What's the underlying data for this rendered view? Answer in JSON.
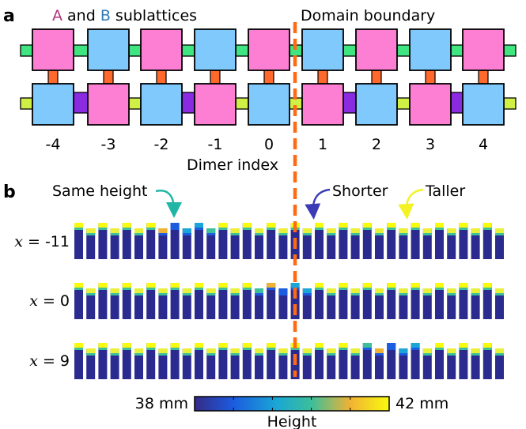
{
  "panel_a": {
    "label": "a",
    "title_letter_a": "A",
    "title_and": " and ",
    "title_letter_b": "B",
    "title_rest": " sublattices",
    "domain_boundary_label": "Domain boundary",
    "dimer_indices": [
      "-4",
      "-3",
      "-2",
      "-1",
      "0",
      "1",
      "2",
      "3",
      "4"
    ],
    "xlabel": "Dimer index",
    "top_row_colors": [
      "pink",
      "blue",
      "pink",
      "blue",
      "pink",
      "blue",
      "pink",
      "blue",
      "pink"
    ],
    "bottom_row_colors": [
      "blue",
      "pink",
      "blue",
      "pink",
      "blue",
      "pink",
      "blue",
      "pink",
      "blue"
    ]
  },
  "panel_b": {
    "label": "b",
    "annotations": {
      "same_height": "Same height",
      "shorter": "Shorter",
      "taller": "Taller"
    },
    "rows": [
      {
        "x_var": "x",
        "eq": " = -11",
        "highlight_center": 9
      },
      {
        "x_var": "x",
        "eq": " = 0",
        "highlight_center": 17
      },
      {
        "x_var": "x",
        "eq": " = 9",
        "highlight_center": 26
      }
    ],
    "colorbar": {
      "min_label": "38 mm",
      "max_label": "42 mm",
      "label": "Height",
      "min": 38,
      "max": 42
    }
  },
  "colors": {
    "pink": "#fc7fd3",
    "blue": "#7fc9fd",
    "green_link": "#3ee580",
    "lime_link": "#d0f046",
    "purple_link": "#8a2be2",
    "orange_link": "#ff6a2c",
    "boundary": "#ff6a12",
    "title_a": "#b0337d",
    "title_b": "#2f7ab8",
    "bar_dark": "#2b2b8f",
    "arrow_same": "#1fb6a6",
    "arrow_shorter": "#3b3bb6",
    "arrow_taller": "#f2f224"
  }
}
